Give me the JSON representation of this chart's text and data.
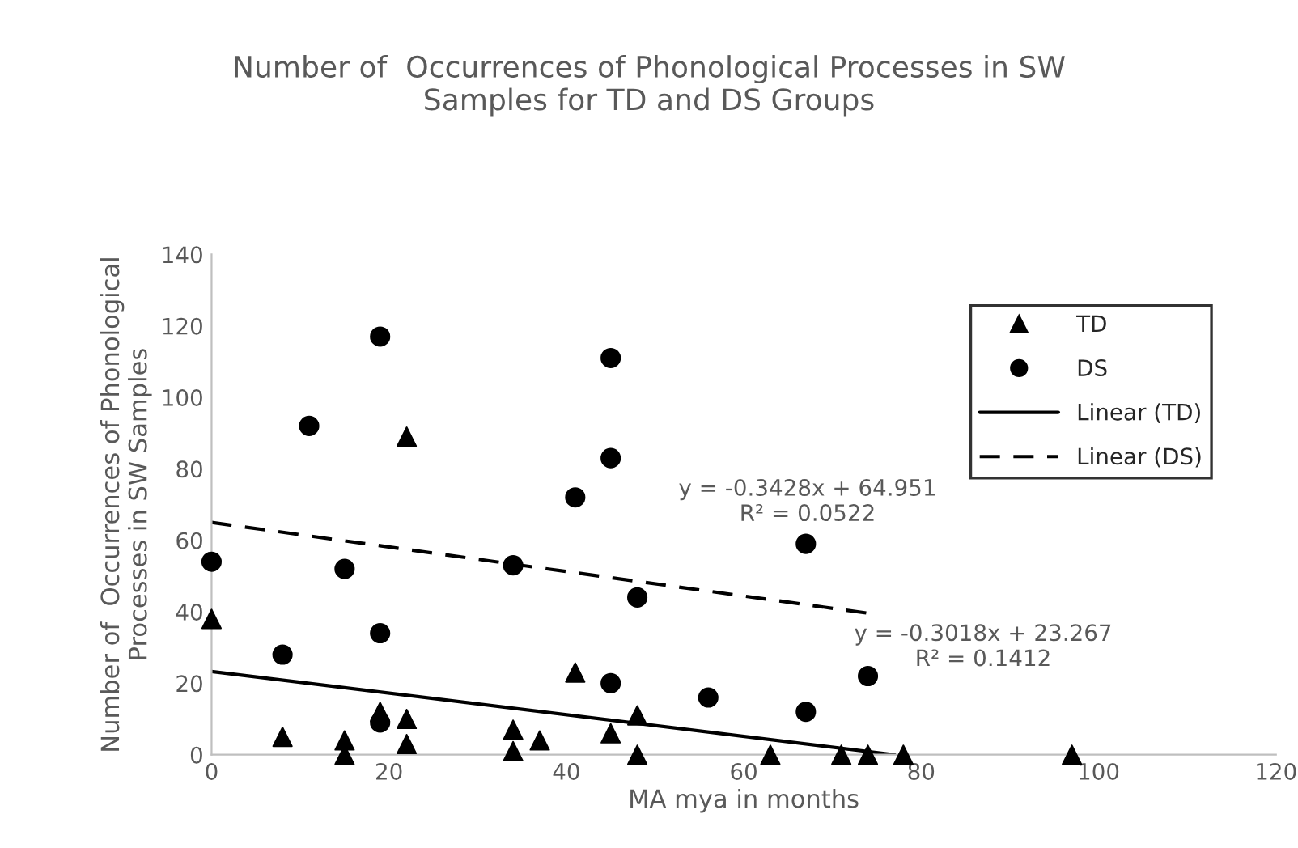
{
  "chart_data": {
    "type": "scatter",
    "title": "Number of  Occurrences of Phonological Processes in SW\nSamples for TD and DS Groups",
    "xlabel": "MA mya in months",
    "ylabel": "Number of  Occurrences of Phonological\nProcesses in SW Samples",
    "xlim": [
      0,
      120
    ],
    "xticks": [
      0,
      20,
      40,
      60,
      80,
      100,
      120
    ],
    "ylim": [
      0,
      140
    ],
    "yticks": [
      0,
      20,
      40,
      60,
      80,
      100,
      120,
      140
    ],
    "grid": false,
    "legend": "top right",
    "series": [
      {
        "name": "TD",
        "marker": "triangle",
        "color": "#000000",
        "x": [
          0,
          8,
          15,
          15,
          19,
          22,
          22,
          22,
          34,
          34,
          37,
          41,
          45,
          48,
          48,
          63,
          71,
          74,
          78,
          97
        ],
        "values": [
          38,
          5,
          4,
          0,
          12,
          89,
          10,
          3,
          7,
          1,
          4,
          23,
          6,
          11,
          0,
          0,
          0,
          0,
          0,
          0
        ]
      },
      {
        "name": "DS",
        "marker": "circle",
        "color": "#000000",
        "x": [
          0,
          8,
          11,
          15,
          19,
          19,
          19,
          34,
          41,
          45,
          45,
          45,
          48,
          56,
          67,
          67,
          74
        ],
        "values": [
          54,
          28,
          92,
          52,
          117,
          34,
          9,
          53,
          72,
          111,
          83,
          20,
          44,
          16,
          59,
          12,
          22
        ]
      },
      {
        "name": "Linear (TD)",
        "type": "line",
        "line_style": "solid",
        "color": "#000000",
        "x": [
          0,
          77
        ],
        "values": [
          23.3,
          0.0
        ]
      },
      {
        "name": "Linear (DS)",
        "type": "line",
        "line_style": "dashed",
        "color": "#000000",
        "x": [
          0,
          74
        ],
        "values": [
          65.0,
          39.6
        ]
      }
    ],
    "annotations": [
      "y = -0.3428x + 64.951\nR² = 0.0522",
      "y = -0.3018x + 23.267\nR² = 0.1412"
    ]
  }
}
